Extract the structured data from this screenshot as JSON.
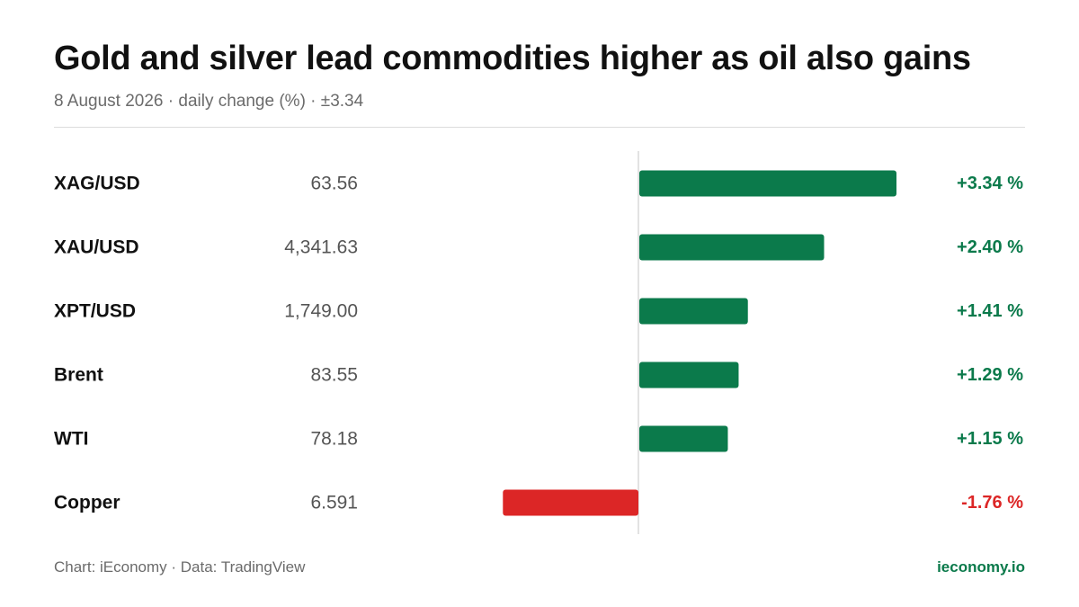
{
  "header": {
    "title": "Gold and silver lead commodities higher as oil also gains",
    "subtitle": "8 August 2026 · daily change (%) · ±3.34"
  },
  "chart_data": {
    "type": "bar",
    "orientation": "horizontal",
    "title": "Gold and silver lead commodities higher as oil also gains",
    "subtitle": "8 August 2026 · daily change (%) · ±3.34",
    "categories": [
      "XAG/USD",
      "XAU/USD",
      "XPT/USD",
      "Brent",
      "WTI",
      "Copper"
    ],
    "prices": [
      "63.56",
      "4,341.63",
      "1,749.00",
      "83.55",
      "78.18",
      "6.591"
    ],
    "values": [
      3.34,
      2.4,
      1.41,
      1.29,
      1.15,
      -1.76
    ],
    "value_labels": [
      "+3.34 %",
      "+2.40 %",
      "+1.41 %",
      "+1.29 %",
      "+1.15 %",
      "-1.76 %"
    ],
    "xlim": [
      -3.34,
      3.34
    ],
    "xlabel": "",
    "ylabel": "",
    "grid": false,
    "legend": "none",
    "colors": {
      "positive": "#0b7a4b",
      "negative": "#dc2626",
      "zero_line": "#d9d9d9"
    }
  },
  "footer": {
    "source": "Chart: iEconomy · Data: TradingView",
    "brand": "ieconomy.io"
  }
}
